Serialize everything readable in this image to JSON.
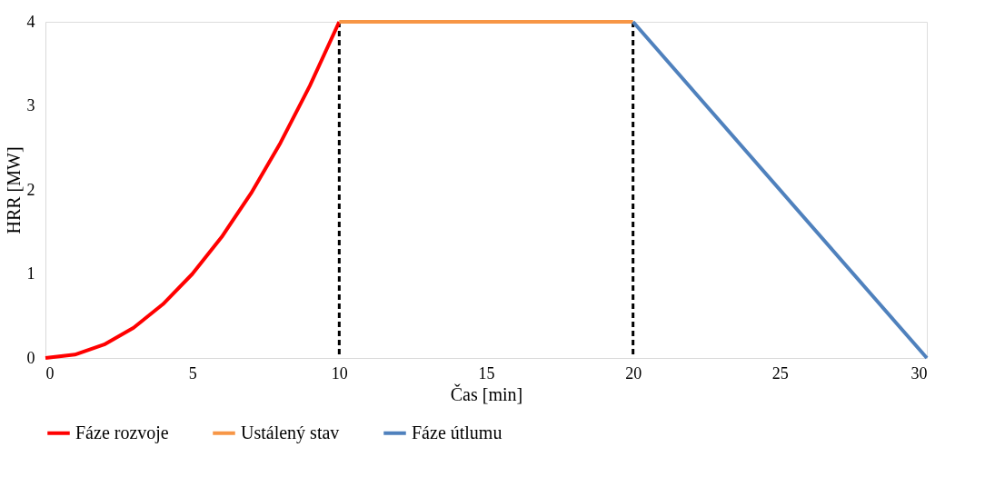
{
  "chart_data": {
    "type": "line",
    "xlabel": "Čas [min]",
    "ylabel": "HRR [MW]",
    "xlim": [
      0,
      30
    ],
    "xticks": [
      0,
      5,
      10,
      15,
      20,
      25,
      30
    ],
    "ylim": [
      0,
      4
    ],
    "yticks": [
      0,
      1,
      2,
      3,
      4
    ],
    "grid": false,
    "legend": "bottom",
    "marker": "none",
    "line_style": "solid",
    "series": [
      {
        "name": "Fáze rozvoje",
        "color": "#ff0000",
        "x": [
          0,
          1,
          2,
          3,
          4,
          5,
          6,
          7,
          8,
          9,
          10
        ],
        "values": [
          0,
          0.04,
          0.16,
          0.36,
          0.64,
          1.0,
          1.44,
          1.96,
          2.56,
          3.24,
          4.0
        ]
      },
      {
        "name": "Ustálený stav",
        "color": "#f79646",
        "x": [
          10,
          20
        ],
        "values": [
          4,
          4
        ]
      },
      {
        "name": "Fáze útlumu",
        "color": "#4f81bd",
        "x": [
          20,
          30
        ],
        "values": [
          4,
          0
        ]
      }
    ],
    "ref_lines": [
      {
        "axis": "x",
        "value": 10,
        "color": "#000000",
        "line_style": "dashed"
      },
      {
        "axis": "x",
        "value": 20,
        "color": "#000000",
        "line_style": "dashed"
      }
    ]
  }
}
